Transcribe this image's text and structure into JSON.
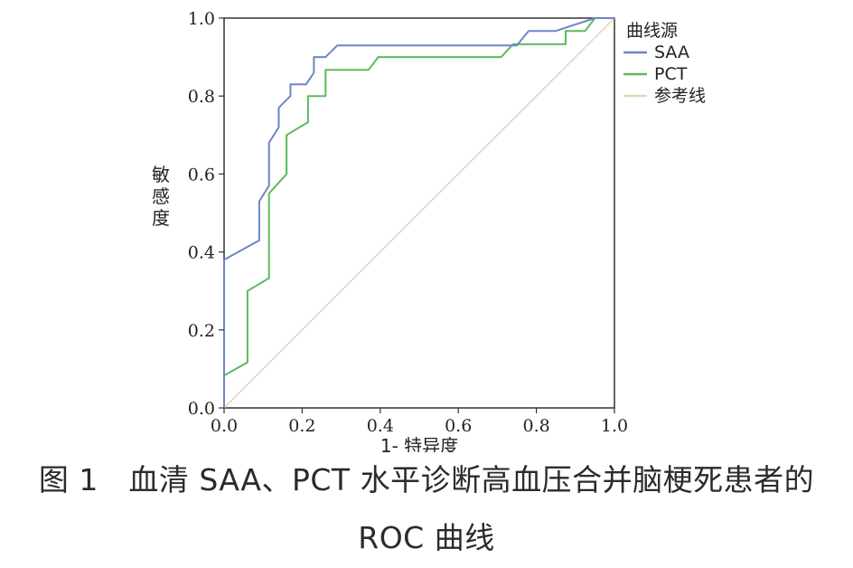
{
  "chart_data": {
    "type": "line",
    "xlabel": "1- 特异度",
    "ylabel": "敏感度",
    "xlim": [
      0,
      1
    ],
    "ylim": [
      0,
      1
    ],
    "x_ticks": [
      "0.0",
      "0.2",
      "0.4",
      "0.6",
      "0.8",
      "1.0"
    ],
    "y_ticks": [
      "0.0",
      "0.2",
      "0.4",
      "0.6",
      "0.8",
      "1.0"
    ],
    "grid": false,
    "legend_title": "曲线源",
    "legend_position": "right",
    "series": [
      {
        "name": "SAA",
        "color": "#6b86c6",
        "points": [
          [
            0,
            0
          ],
          [
            0,
            0.38
          ],
          [
            0.09,
            0.43
          ],
          [
            0.09,
            0.53
          ],
          [
            0.115,
            0.57
          ],
          [
            0.115,
            0.68
          ],
          [
            0.14,
            0.72
          ],
          [
            0.14,
            0.77
          ],
          [
            0.17,
            0.8
          ],
          [
            0.17,
            0.83
          ],
          [
            0.21,
            0.83
          ],
          [
            0.23,
            0.86
          ],
          [
            0.23,
            0.9
          ],
          [
            0.26,
            0.9
          ],
          [
            0.29,
            0.93
          ],
          [
            0.75,
            0.93
          ],
          [
            0.78,
            0.967
          ],
          [
            0.85,
            0.967
          ],
          [
            0.95,
            1
          ],
          [
            1,
            1
          ]
        ]
      },
      {
        "name": "PCT",
        "color": "#5cbb5a",
        "points": [
          [
            0,
            0
          ],
          [
            0,
            0.083
          ],
          [
            0.06,
            0.117
          ],
          [
            0.06,
            0.3
          ],
          [
            0.115,
            0.333
          ],
          [
            0.115,
            0.55
          ],
          [
            0.16,
            0.6
          ],
          [
            0.16,
            0.7
          ],
          [
            0.215,
            0.733
          ],
          [
            0.215,
            0.8
          ],
          [
            0.26,
            0.8
          ],
          [
            0.26,
            0.867
          ],
          [
            0.37,
            0.867
          ],
          [
            0.395,
            0.9
          ],
          [
            0.71,
            0.9
          ],
          [
            0.74,
            0.933
          ],
          [
            0.875,
            0.933
          ],
          [
            0.875,
            0.967
          ],
          [
            0.925,
            0.967
          ],
          [
            0.95,
            1
          ],
          [
            1,
            1
          ]
        ]
      },
      {
        "name": "参考线",
        "color": "#ddd9b8",
        "points": [
          [
            0,
            0
          ],
          [
            1,
            1
          ]
        ]
      }
    ]
  },
  "caption": {
    "line1": "图 1　血清 SAA、PCT 水平诊断高血压合并脑梗死患者的",
    "line2": "ROC 曲线"
  }
}
